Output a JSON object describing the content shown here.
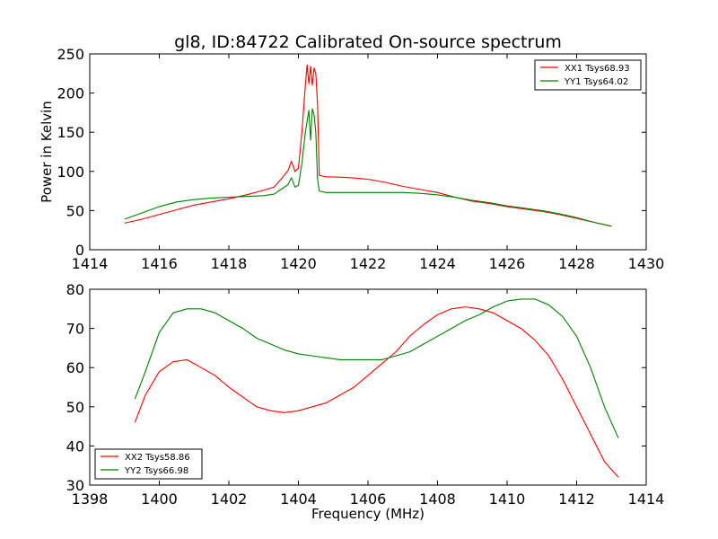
{
  "figure": {
    "title": "gl8, ID:84722 Calibrated On-source spectrum"
  },
  "chart_data": [
    {
      "type": "line",
      "title": "gl8, ID:84722 Calibrated On-source spectrum",
      "xlabel": "",
      "ylabel": "Power in Kelvin",
      "xlim": [
        1414,
        1430
      ],
      "ylim": [
        0,
        250
      ],
      "xticks": [
        1414,
        1416,
        1418,
        1420,
        1422,
        1424,
        1426,
        1428,
        1430
      ],
      "yticks": [
        0,
        50,
        100,
        150,
        200,
        250
      ],
      "grid": false,
      "legend_position": "top-right",
      "series": [
        {
          "name": "XX1 Tsys68.93",
          "color": "#ff0000",
          "points": [
            [
              1415.0,
              34
            ],
            [
              1415.5,
              39
            ],
            [
              1416.0,
              45
            ],
            [
              1416.5,
              51
            ],
            [
              1417.0,
              57
            ],
            [
              1417.5,
              61
            ],
            [
              1418.0,
              65
            ],
            [
              1418.5,
              70
            ],
            [
              1419.0,
              76
            ],
            [
              1419.3,
              80
            ],
            [
              1419.5,
              90
            ],
            [
              1419.7,
              101
            ],
            [
              1419.8,
              113
            ],
            [
              1419.9,
              100
            ],
            [
              1420.0,
              104
            ],
            [
              1420.1,
              150
            ],
            [
              1420.2,
              210
            ],
            [
              1420.25,
              236
            ],
            [
              1420.3,
              212
            ],
            [
              1420.35,
              234
            ],
            [
              1420.4,
              210
            ],
            [
              1420.45,
              232
            ],
            [
              1420.5,
              225
            ],
            [
              1420.55,
              185
            ],
            [
              1420.6,
              95
            ],
            [
              1420.8,
              93
            ],
            [
              1421.0,
              93
            ],
            [
              1421.5,
              92
            ],
            [
              1422.0,
              90
            ],
            [
              1422.5,
              86
            ],
            [
              1423.0,
              81
            ],
            [
              1423.5,
              77
            ],
            [
              1424.0,
              73
            ],
            [
              1424.5,
              67
            ],
            [
              1425.0,
              62
            ],
            [
              1425.5,
              59
            ],
            [
              1426.0,
              55
            ],
            [
              1426.5,
              52
            ],
            [
              1427.0,
              49
            ],
            [
              1427.5,
              45
            ],
            [
              1428.0,
              40
            ],
            [
              1428.5,
              35
            ],
            [
              1429.0,
              30
            ]
          ]
        },
        {
          "name": "YY1 Tsys64.02",
          "color": "#008000",
          "points": [
            [
              1415.0,
              39
            ],
            [
              1415.5,
              47
            ],
            [
              1416.0,
              55
            ],
            [
              1416.5,
              61
            ],
            [
              1417.0,
              64
            ],
            [
              1417.5,
              66
            ],
            [
              1418.0,
              67
            ],
            [
              1418.5,
              68
            ],
            [
              1419.0,
              69
            ],
            [
              1419.3,
              71
            ],
            [
              1419.5,
              77
            ],
            [
              1419.7,
              83
            ],
            [
              1419.8,
              92
            ],
            [
              1419.9,
              80
            ],
            [
              1420.0,
              82
            ],
            [
              1420.1,
              110
            ],
            [
              1420.2,
              150
            ],
            [
              1420.3,
              178
            ],
            [
              1420.35,
              140
            ],
            [
              1420.4,
              180
            ],
            [
              1420.45,
              172
            ],
            [
              1420.5,
              150
            ],
            [
              1420.55,
              90
            ],
            [
              1420.6,
              75
            ],
            [
              1420.8,
              73
            ],
            [
              1421.0,
              73
            ],
            [
              1421.5,
              73
            ],
            [
              1422.0,
              73
            ],
            [
              1422.5,
              73
            ],
            [
              1423.0,
              73
            ],
            [
              1423.5,
              72
            ],
            [
              1424.0,
              70
            ],
            [
              1424.5,
              67
            ],
            [
              1425.0,
              63
            ],
            [
              1425.5,
              60
            ],
            [
              1426.0,
              56
            ],
            [
              1426.5,
              53
            ],
            [
              1427.0,
              50
            ],
            [
              1427.5,
              46
            ],
            [
              1428.0,
              41
            ],
            [
              1428.5,
              35
            ],
            [
              1429.0,
              30
            ]
          ]
        }
      ]
    },
    {
      "type": "line",
      "title": "",
      "xlabel": "Frequency (MHz)",
      "ylabel": "",
      "xlim": [
        1398,
        1414
      ],
      "ylim": [
        30,
        80
      ],
      "xticks": [
        1398,
        1400,
        1402,
        1404,
        1406,
        1408,
        1410,
        1412,
        1414
      ],
      "yticks": [
        30,
        40,
        50,
        60,
        70,
        80
      ],
      "grid": false,
      "legend_position": "bottom-left",
      "series": [
        {
          "name": "XX2 Tsys58.86",
          "color": "#ff0000",
          "points": [
            [
              1399.3,
              46
            ],
            [
              1399.6,
              53
            ],
            [
              1400.0,
              59
            ],
            [
              1400.4,
              61.5
            ],
            [
              1400.8,
              62
            ],
            [
              1401.2,
              60
            ],
            [
              1401.6,
              58
            ],
            [
              1402.0,
              55
            ],
            [
              1402.4,
              52.5
            ],
            [
              1402.8,
              50
            ],
            [
              1403.2,
              49
            ],
            [
              1403.6,
              48.5
            ],
            [
              1404.0,
              49
            ],
            [
              1404.4,
              50
            ],
            [
              1404.8,
              51
            ],
            [
              1405.2,
              53
            ],
            [
              1405.6,
              55
            ],
            [
              1406.0,
              58
            ],
            [
              1406.4,
              61
            ],
            [
              1406.8,
              64
            ],
            [
              1407.2,
              68
            ],
            [
              1407.6,
              71
            ],
            [
              1408.0,
              73.5
            ],
            [
              1408.4,
              75
            ],
            [
              1408.8,
              75.5
            ],
            [
              1409.2,
              75
            ],
            [
              1409.6,
              74
            ],
            [
              1410.0,
              72
            ],
            [
              1410.4,
              70
            ],
            [
              1410.8,
              67
            ],
            [
              1411.2,
              63
            ],
            [
              1411.6,
              57
            ],
            [
              1412.0,
              50
            ],
            [
              1412.4,
              43
            ],
            [
              1412.8,
              36
            ],
            [
              1413.2,
              32
            ]
          ]
        },
        {
          "name": "YY2 Tsys66.98",
          "color": "#008000",
          "points": [
            [
              1399.3,
              52
            ],
            [
              1399.6,
              59
            ],
            [
              1400.0,
              69
            ],
            [
              1400.4,
              74
            ],
            [
              1400.8,
              75
            ],
            [
              1401.2,
              75
            ],
            [
              1401.6,
              74
            ],
            [
              1402.0,
              72
            ],
            [
              1402.4,
              70
            ],
            [
              1402.8,
              67.5
            ],
            [
              1403.2,
              66
            ],
            [
              1403.6,
              64.5
            ],
            [
              1404.0,
              63.5
            ],
            [
              1404.4,
              63
            ],
            [
              1404.8,
              62.5
            ],
            [
              1405.2,
              62
            ],
            [
              1405.6,
              62
            ],
            [
              1406.0,
              62
            ],
            [
              1406.4,
              62
            ],
            [
              1406.8,
              63
            ],
            [
              1407.2,
              64
            ],
            [
              1407.6,
              66
            ],
            [
              1408.0,
              68
            ],
            [
              1408.4,
              70
            ],
            [
              1408.8,
              72
            ],
            [
              1409.2,
              73.5
            ],
            [
              1409.6,
              75.5
            ],
            [
              1410.0,
              77
            ],
            [
              1410.4,
              77.5
            ],
            [
              1410.8,
              77.5
            ],
            [
              1411.2,
              76
            ],
            [
              1411.6,
              73
            ],
            [
              1412.0,
              68
            ],
            [
              1412.4,
              60
            ],
            [
              1412.8,
              50
            ],
            [
              1413.2,
              42
            ]
          ]
        }
      ]
    }
  ]
}
